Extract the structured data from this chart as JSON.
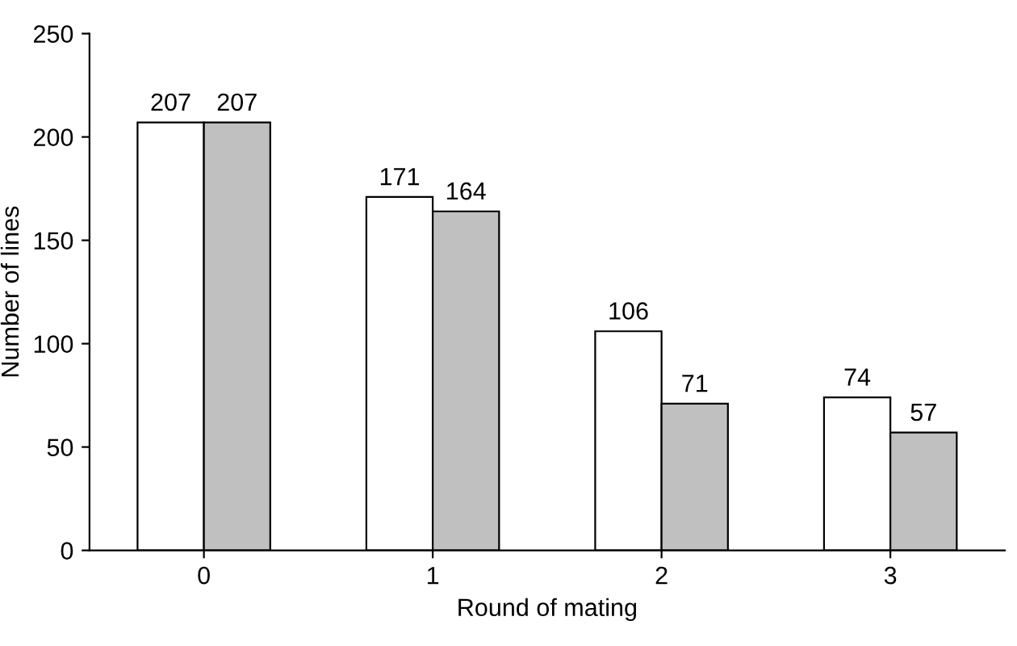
{
  "chart_data": {
    "type": "bar",
    "xlabel": "Round of mating",
    "ylabel": "Number of lines",
    "categories": [
      "0",
      "1",
      "2",
      "3"
    ],
    "series": [
      {
        "color": "#ffffff",
        "values": [
          207,
          171,
          106,
          74
        ]
      },
      {
        "color": "#c0c0c0",
        "values": [
          207,
          164,
          71,
          57
        ]
      }
    ],
    "ylim": [
      0,
      250
    ],
    "yticks": [
      0,
      50,
      100,
      150,
      200,
      250
    ],
    "grid": false,
    "legend": false,
    "data_labels": true
  }
}
